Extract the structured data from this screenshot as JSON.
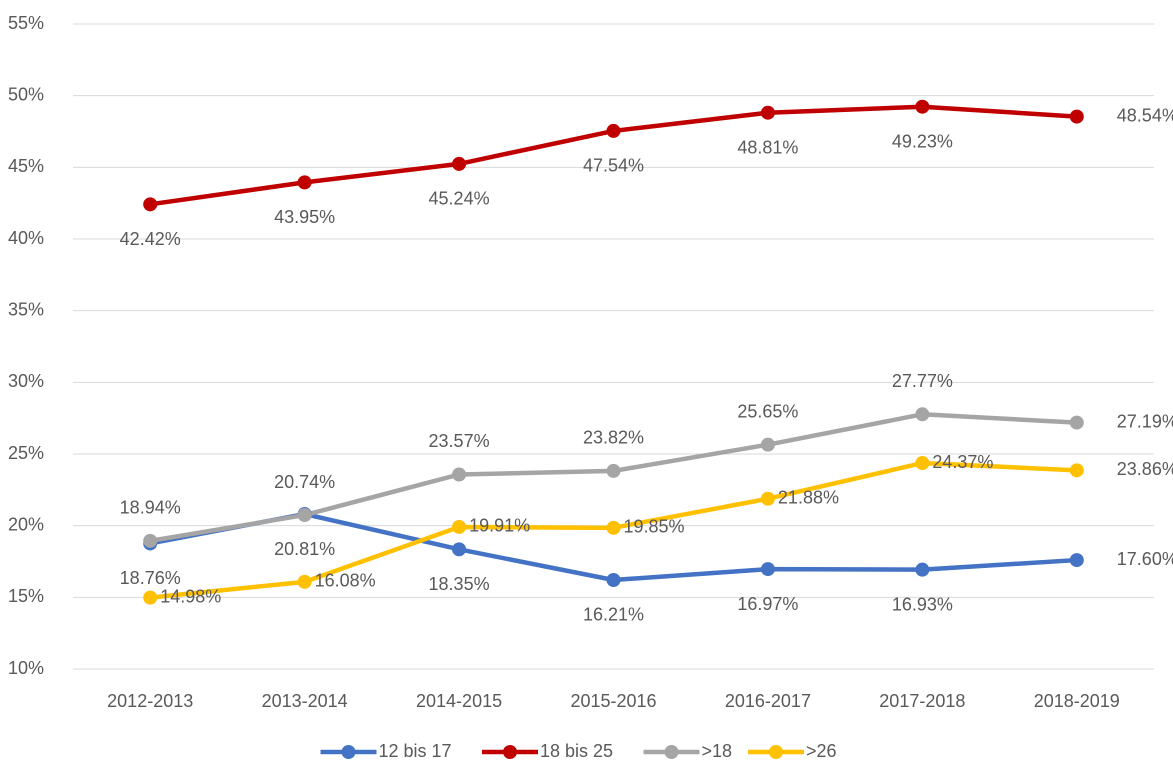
{
  "chart_data": {
    "type": "line",
    "categories": [
      "2012-2013",
      "2013-2014",
      "2014-2015",
      "2015-2016",
      "2016-2017",
      "2017-2018",
      "2018-2019"
    ],
    "series": [
      {
        "name": "12 bis 17",
        "color": "#4472c4",
        "values": [
          18.76,
          20.81,
          18.35,
          16.21,
          16.97,
          16.93,
          17.6
        ],
        "value_labels": [
          "18.76%",
          "20.81%",
          "18.35%",
          "16.21%",
          "16.97%",
          "16.93%",
          "17.60%"
        ]
      },
      {
        "name": "18 bis 25",
        "color": "#c00000",
        "values": [
          42.42,
          43.95,
          45.24,
          47.54,
          48.81,
          49.23,
          48.54
        ],
        "value_labels": [
          "42.42%",
          "43.95%",
          "45.24%",
          "47.54%",
          "48.81%",
          "49.23%",
          "48.54%"
        ]
      },
      {
        "name": ">18",
        "color": "#a5a5a5",
        "values": [
          18.94,
          20.74,
          23.57,
          23.82,
          25.65,
          27.77,
          27.19
        ],
        "value_labels": [
          "18.94%",
          "20.74%",
          "23.57%",
          "23.82%",
          "25.65%",
          "27.77%",
          "27.19%"
        ]
      },
      {
        "name": ">26",
        "color": "#ffc000",
        "values": [
          14.98,
          16.08,
          19.91,
          19.85,
          21.88,
          24.37,
          23.86
        ],
        "value_labels": [
          "14.98%",
          "16.08%",
          "19.91%",
          "19.85%",
          "21.88%",
          "24.37%",
          "23.86%"
        ]
      }
    ],
    "ylim": [
      10,
      55
    ],
    "yticks": [
      {
        "value": 10,
        "label": "10%"
      },
      {
        "value": 15,
        "label": "15%"
      },
      {
        "value": 20,
        "label": "20%"
      },
      {
        "value": 25,
        "label": "25%"
      },
      {
        "value": 30,
        "label": "30%"
      },
      {
        "value": 35,
        "label": "35%"
      },
      {
        "value": 40,
        "label": "40%"
      },
      {
        "value": 45,
        "label": "45%"
      },
      {
        "value": 50,
        "label": "50%"
      },
      {
        "value": 55,
        "label": "55%"
      }
    ],
    "grid": true,
    "legend": "bottom"
  }
}
